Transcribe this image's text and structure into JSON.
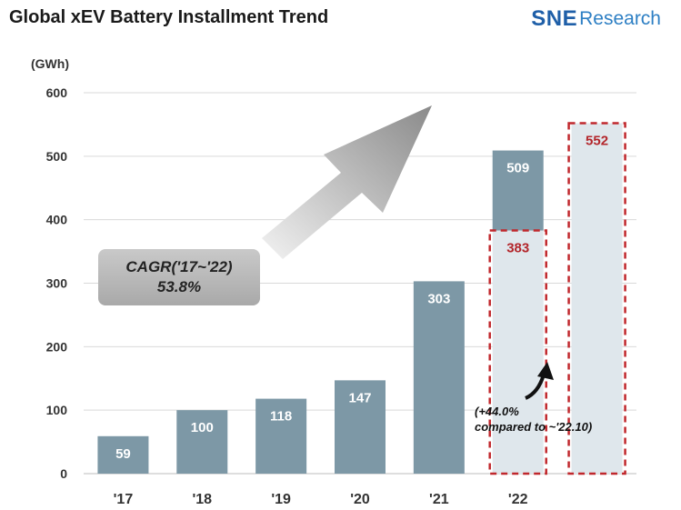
{
  "title": "Global xEV Battery Installment Trend",
  "logo": {
    "sne": "SNE",
    "research": "Research"
  },
  "ylabel": "(GWh)",
  "cagr": {
    "label": "CAGR('17~'22)",
    "value": "53.8%"
  },
  "note": {
    "line1": "(+44.0%",
    "line2": "compared to ~'22.10)"
  },
  "colors": {
    "bar": "#7d98a6",
    "bar_light": "#dfe7ec",
    "dashed": "#c0282d",
    "highlight_text": "#b3262b"
  },
  "chart_data": {
    "type": "bar",
    "title": "Global xEV Battery Installment Trend",
    "ylabel": "(GWh)",
    "ylim": [
      0,
      600
    ],
    "yticks": [
      0,
      100,
      200,
      300,
      400,
      500,
      600
    ],
    "grid": true,
    "categories": [
      "'17",
      "'18",
      "'19",
      "'20",
      "'21",
      "'22",
      ""
    ],
    "values": [
      59,
      100,
      118,
      147,
      303,
      509,
      552
    ],
    "series": [
      {
        "values": [
          59,
          100,
          118,
          147,
          303,
          509,
          null
        ]
      }
    ],
    "highlight": [
      {
        "category": "'22",
        "value": 383,
        "style": "dashed"
      },
      {
        "category": "",
        "value": 552,
        "style": "dashed"
      }
    ]
  }
}
